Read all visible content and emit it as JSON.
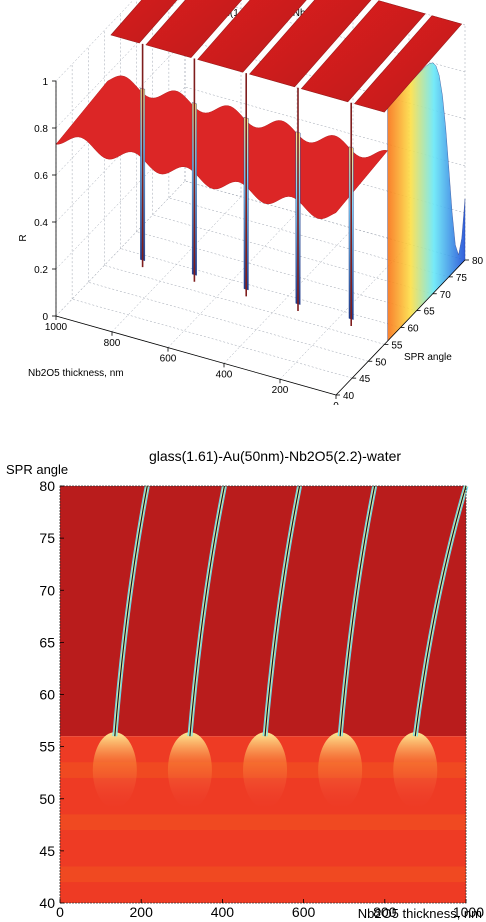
{
  "chart_data": [
    {
      "type": "surface",
      "title": "glass(1.61)-Au(50)-Nb2O5(2.2)-air",
      "xlabel": "Nb2O5 thickness, nm",
      "ylabel": "SPR angle",
      "zlabel": "R",
      "xlim": [
        0,
        1000
      ],
      "ylim": [
        40,
        80
      ],
      "zlim": [
        0,
        1
      ],
      "x_ticks": [
        "0",
        "200",
        "400",
        "600",
        "800",
        "1000"
      ],
      "y_ticks": [
        "40",
        "45",
        "50",
        "55",
        "60",
        "65",
        "70",
        "75",
        "80"
      ],
      "z_ticks": [
        "0",
        "0.2",
        "0.4",
        "0.6",
        "0.8",
        "1"
      ],
      "grid": true,
      "colormap": "jet",
      "baseline_reflectance": 0.78,
      "resonance_dip_thickness": [
        130,
        320,
        505,
        690,
        875
      ],
      "total_reflection_plateau_height": 1.0,
      "surface_plasmon_dip_angle": 78
    },
    {
      "type": "heatmap",
      "title": "glass(1.61)-Au(50nm)-Nb2O5(2.2)-water",
      "xlabel": "Nb2O5 thickness, nm",
      "ylabel": "SPR angle",
      "xlim": [
        0,
        1000
      ],
      "ylim": [
        40,
        80
      ],
      "x_ticks": [
        "0",
        "200",
        "400",
        "600",
        "800",
        "1000"
      ],
      "y_ticks": [
        "40",
        "45",
        "50",
        "55",
        "60",
        "65",
        "70",
        "75",
        "80"
      ],
      "colormap": "jet",
      "critical_angle": 56,
      "resonance_lines": [
        {
          "thickness_at_56": 135,
          "thickness_at_80": 215
        },
        {
          "thickness_at_56": 320,
          "thickness_at_80": 405
        },
        {
          "thickness_at_56": 505,
          "thickness_at_80": 590
        },
        {
          "thickness_at_56": 690,
          "thickness_at_80": 775
        },
        {
          "thickness_at_56": 875,
          "thickness_at_80": 1000
        }
      ]
    }
  ]
}
